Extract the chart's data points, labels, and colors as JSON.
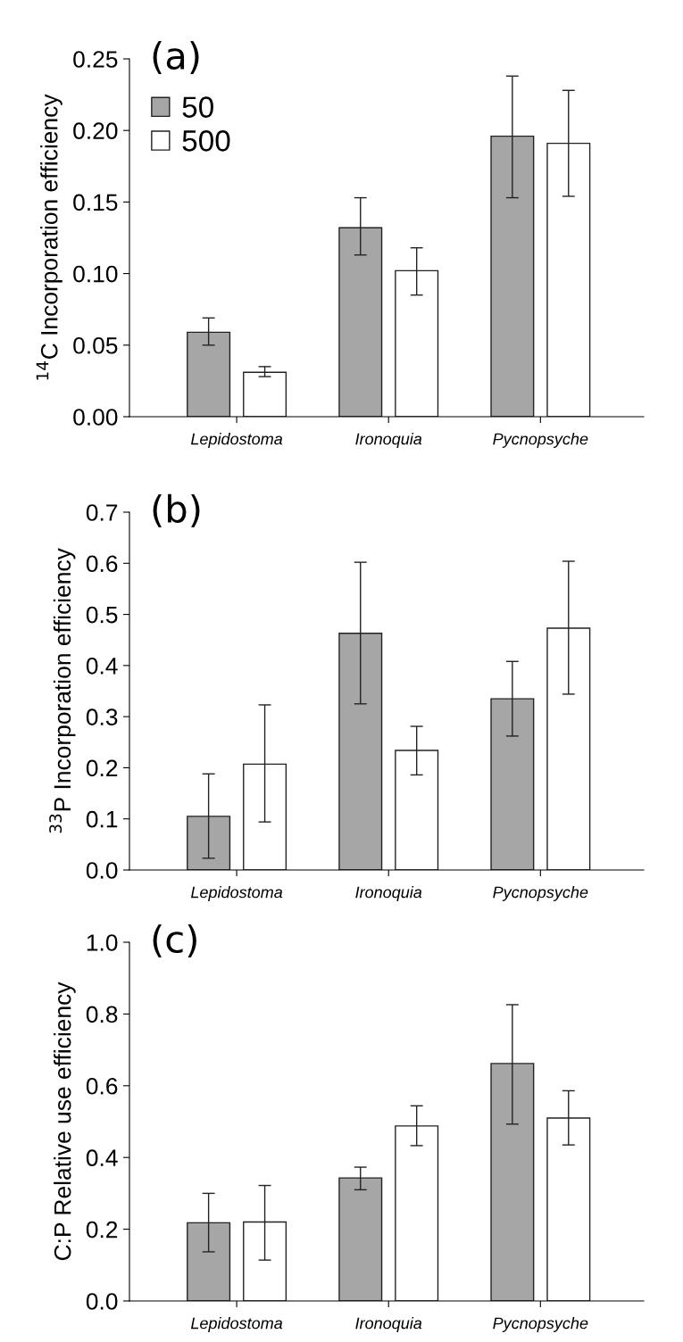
{
  "chart_data": [
    {
      "type": "bar",
      "title": "(a)",
      "ylabel": "$^{14}$C Incorporation efficiency",
      "categories": [
        "Lepidostoma",
        "Ironoquia",
        "Pycnopsyche"
      ],
      "ylim": [
        0,
        0.25
      ],
      "yticks": [
        {
          "value": 0,
          "label": "0.00"
        },
        0.05,
        {
          "value": 0.1,
          "label": "0.10"
        },
        0.15,
        {
          "value": 0.2,
          "label": "0.20"
        },
        0.25
      ],
      "legend": "top left",
      "grid": false,
      "series": [
        {
          "name": "50",
          "color": "#a6a6a6",
          "values": [
            0.059,
            0.132,
            0.196
          ],
          "errors": [
            [
              0.05,
              0.069
            ],
            [
              0.113,
              0.153
            ],
            [
              0.153,
              0.238
            ]
          ]
        },
        {
          "name": "500",
          "color": "#ffffff",
          "values": [
            0.031,
            0.102,
            0.191
          ],
          "errors": [
            [
              0.028,
              0.035
            ],
            [
              0.085,
              0.118
            ],
            [
              0.154,
              0.228
            ]
          ]
        }
      ]
    },
    {
      "type": "bar",
      "title": "(b)",
      "ylabel": "$^{33}$P Incorporation efficiency",
      "categories": [
        "Lepidostoma",
        "Ironoquia",
        "Pycnopsyche"
      ],
      "ylim": [
        0,
        0.7
      ],
      "yticks": [
        {
          "value": 0,
          "label": "0.0"
        },
        0.1,
        0.2,
        0.3,
        0.4,
        0.5,
        0.6,
        0.7
      ],
      "grid": false,
      "series": [
        {
          "color": "#a6a6a6",
          "values": [
            0.105,
            0.463,
            0.335
          ],
          "errors": [
            [
              0.023,
              0.188
            ],
            [
              0.325,
              0.602
            ],
            [
              0.262,
              0.408
            ]
          ]
        },
        {
          "color": "#ffffff",
          "values": [
            0.207,
            0.234,
            0.473
          ],
          "errors": [
            [
              0.094,
              0.323
            ],
            [
              0.186,
              0.281
            ],
            [
              0.344,
              0.604
            ]
          ]
        }
      ]
    },
    {
      "type": "bar",
      "title": "(c)",
      "ylabel": "C:P Relative use efficiency",
      "categories": [
        "Lepidostoma",
        "Ironoquia",
        "Pycnopsyche"
      ],
      "ylim": [
        0,
        1.0
      ],
      "yticks": [
        {
          "value": 0,
          "label": "0.0"
        },
        0.2,
        0.4,
        0.6,
        0.8,
        {
          "value": 1.0,
          "label": "1.0"
        }
      ],
      "grid": false,
      "series": [
        {
          "color": "#a6a6a6",
          "values": [
            0.218,
            0.343,
            0.662
          ],
          "errors": [
            [
              0.137,
              0.3
            ],
            [
              0.31,
              0.373
            ],
            [
              0.493,
              0.826
            ]
          ]
        },
        {
          "color": "#ffffff",
          "values": [
            0.22,
            0.488,
            0.51
          ],
          "errors": [
            [
              0.114,
              0.322
            ],
            [
              0.433,
              0.544
            ],
            [
              0.435,
              0.586
            ]
          ]
        }
      ]
    }
  ]
}
